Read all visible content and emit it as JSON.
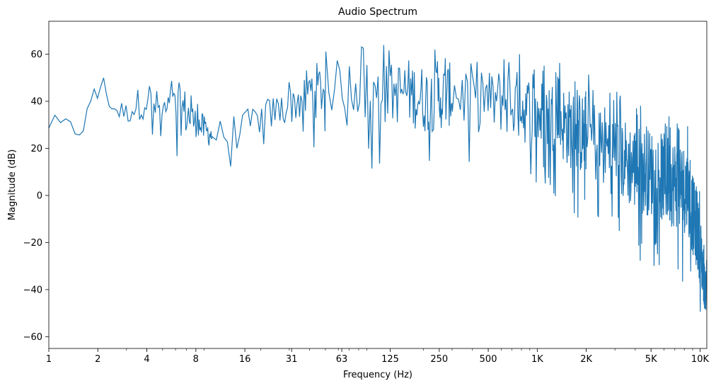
{
  "chart_data": {
    "type": "line",
    "title": "Audio Spectrum",
    "xlabel": "Frequency (Hz)",
    "ylabel": "Magnitude (dB)",
    "x_scale": "log2",
    "xlim": [
      1,
      11000
    ],
    "ylim": [
      -65,
      74
    ],
    "x_ticks": [
      {
        "value": 1,
        "label": "1"
      },
      {
        "value": 2,
        "label": "2"
      },
      {
        "value": 4,
        "label": "4"
      },
      {
        "value": 8,
        "label": "8"
      },
      {
        "value": 16,
        "label": "16"
      },
      {
        "value": 31,
        "label": "31"
      },
      {
        "value": 63,
        "label": "63"
      },
      {
        "value": 125,
        "label": "125"
      },
      {
        "value": 250,
        "label": "250"
      },
      {
        "value": 500,
        "label": "500"
      },
      {
        "value": 1000,
        "label": "1K"
      },
      {
        "value": 2000,
        "label": "2K"
      },
      {
        "value": 5000,
        "label": "5K"
      },
      {
        "value": 10000,
        "label": "10K"
      }
    ],
    "y_ticks": [
      {
        "value": -60,
        "label": "−60"
      },
      {
        "value": -40,
        "label": "−40"
      },
      {
        "value": -20,
        "label": "−20"
      },
      {
        "value": 0,
        "label": "0"
      },
      {
        "value": 20,
        "label": "20"
      },
      {
        "value": 40,
        "label": "40"
      },
      {
        "value": 60,
        "label": "60"
      }
    ],
    "grid": false,
    "legend": "none",
    "series": [
      {
        "color": "#1f77b4",
        "envelope": [
          {
            "f": 1,
            "max": 36,
            "min": 22
          },
          {
            "f": 1.2,
            "max": 37,
            "min": 18
          },
          {
            "f": 1.4,
            "max": 36,
            "min": 15
          },
          {
            "f": 1.7,
            "max": 43,
            "min": 17
          },
          {
            "f": 2.0,
            "max": 48,
            "min": 35
          },
          {
            "f": 2.1,
            "max": 56,
            "min": 38
          },
          {
            "f": 2.5,
            "max": 44,
            "min": 27
          },
          {
            "f": 3,
            "max": 42,
            "min": 25
          },
          {
            "f": 4,
            "max": 55,
            "min": 23
          },
          {
            "f": 5,
            "max": 45,
            "min": 22
          },
          {
            "f": 6.5,
            "max": 55,
            "min": 12
          },
          {
            "f": 8,
            "max": 40,
            "min": 18
          },
          {
            "f": 10,
            "max": 34,
            "min": 14
          },
          {
            "f": 13,
            "max": 38,
            "min": 10
          },
          {
            "f": 16,
            "max": 40,
            "min": 12
          },
          {
            "f": 20,
            "max": 44,
            "min": 18
          },
          {
            "f": 25,
            "max": 47,
            "min": 20
          },
          {
            "f": 31,
            "max": 50,
            "min": 22
          },
          {
            "f": 40,
            "max": 63,
            "min": 18
          },
          {
            "f": 50,
            "max": 62,
            "min": 22
          },
          {
            "f": 63,
            "max": 64,
            "min": 24
          },
          {
            "f": 80,
            "max": 64,
            "min": 20
          },
          {
            "f": 100,
            "max": 66,
            "min": 8
          },
          {
            "f": 125,
            "max": 63,
            "min": 16
          },
          {
            "f": 160,
            "max": 66,
            "min": 14
          },
          {
            "f": 200,
            "max": 63,
            "min": 10
          },
          {
            "f": 250,
            "max": 63,
            "min": 12
          },
          {
            "f": 320,
            "max": 64,
            "min": 15
          },
          {
            "f": 400,
            "max": 64,
            "min": 10
          },
          {
            "f": 460,
            "max": 68,
            "min": 8
          },
          {
            "f": 500,
            "max": 60,
            "min": 12
          },
          {
            "f": 630,
            "max": 62,
            "min": 10
          },
          {
            "f": 800,
            "max": 61,
            "min": 5
          },
          {
            "f": 1000,
            "max": 57,
            "min": 3
          },
          {
            "f": 1250,
            "max": 58,
            "min": 0
          },
          {
            "f": 1600,
            "max": 54,
            "min": -8
          },
          {
            "f": 2000,
            "max": 52,
            "min": -12
          },
          {
            "f": 2500,
            "max": 50,
            "min": -18
          },
          {
            "f": 3200,
            "max": 44,
            "min": -22
          },
          {
            "f": 4000,
            "max": 40,
            "min": -28
          },
          {
            "f": 5000,
            "max": 38,
            "min": -30
          },
          {
            "f": 6300,
            "max": 36,
            "min": -34
          },
          {
            "f": 7500,
            "max": 33,
            "min": -36
          },
          {
            "f": 8300,
            "max": 31,
            "min": -38
          },
          {
            "f": 9000,
            "max": 18,
            "min": -44
          },
          {
            "f": 9800,
            "max": 5,
            "min": -52
          },
          {
            "f": 10300,
            "max": -8,
            "min": -58
          },
          {
            "f": 10700,
            "max": -25,
            "min": -60
          },
          {
            "f": 11000,
            "max": -27,
            "min": -48
          }
        ]
      }
    ]
  }
}
